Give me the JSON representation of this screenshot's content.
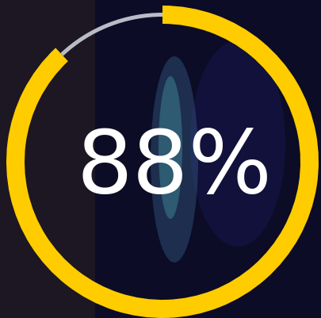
{
  "chart_data": {
    "type": "donut",
    "values": [
      88,
      12
    ],
    "value_labels": [
      "88%",
      null
    ],
    "colors": [
      "#ffcc00",
      "#b9bcc6"
    ]
  }
}
